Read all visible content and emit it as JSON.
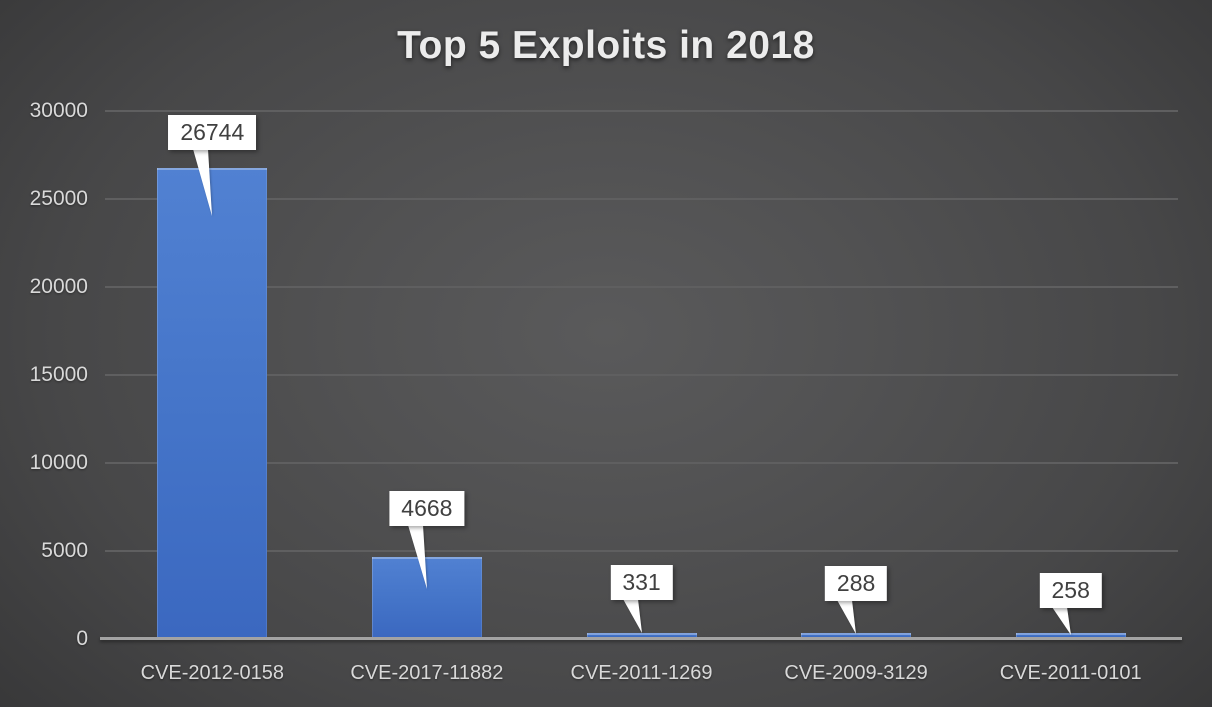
{
  "title": "Top 5 Exploits in 2018",
  "colors": {
    "background_center": "#5a5a5b",
    "background_edge": "#1f1f20",
    "bar_top": "#5181d2",
    "bar_bottom": "#3b68c0",
    "gridline": "#5f5f60",
    "axis_line": "#a3a3a3",
    "axis_text": "#d9d9d9",
    "title_text": "#ececec",
    "callout_background": "#ffffff",
    "callout_text": "#404040"
  },
  "chart_data": {
    "type": "bar",
    "title": "Top 5 Exploits in 2018",
    "categories": [
      "CVE-2012-0158",
      "CVE-2017-11882",
      "CVE-2011-1269",
      "CVE-2009-3129",
      "CVE-2011-0101"
    ],
    "values": [
      26744,
      4668,
      331,
      288,
      258
    ],
    "data_labels": [
      "26744",
      "4668",
      "331",
      "288",
      "258"
    ],
    "xlabel": "",
    "ylabel": "",
    "ylim": [
      0,
      30000
    ],
    "ytick_interval": 5000,
    "yticks": [
      0,
      5000,
      10000,
      15000,
      20000,
      25000,
      30000
    ],
    "grid": true,
    "legend": "none",
    "bar_color": "#4474c8",
    "data_label_style": "white-callout-with-pointer"
  }
}
